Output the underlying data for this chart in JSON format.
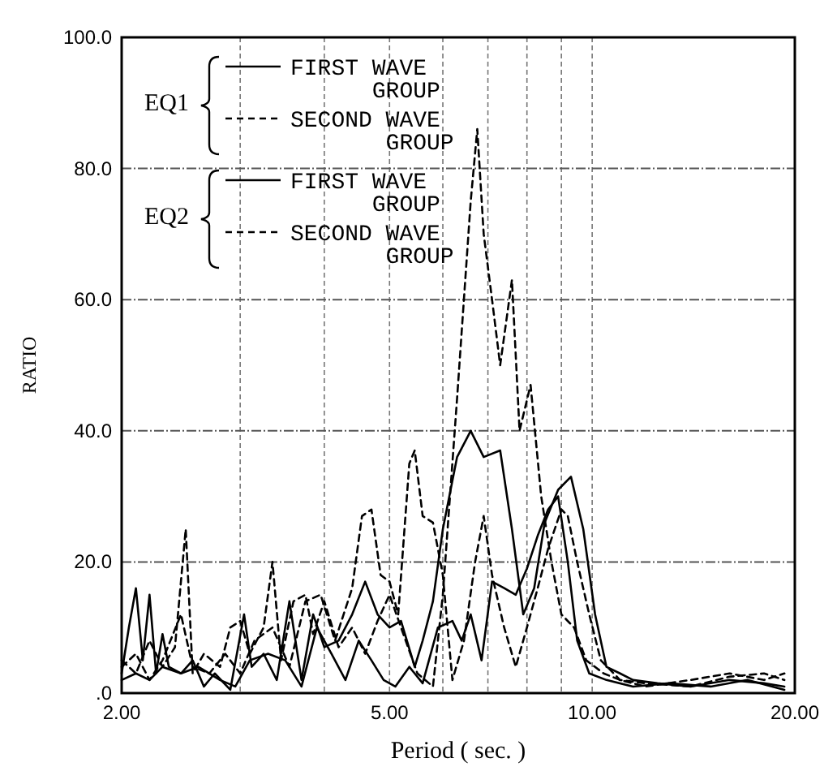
{
  "chart_data": {
    "type": "line",
    "xlabel": "Period ( sec. )",
    "ylabel": "RATIO",
    "log": "x",
    "xlim": [
      2,
      20
    ],
    "ylim": [
      0,
      100
    ],
    "xticks": [
      {
        "value": 2,
        "label": "2.00"
      },
      {
        "value": 3,
        "label": null
      },
      {
        "value": 4,
        "label": null
      },
      {
        "value": 5,
        "label": "5.00"
      },
      {
        "value": 6,
        "label": null
      },
      {
        "value": 7,
        "label": null
      },
      {
        "value": 8,
        "label": null
      },
      {
        "value": 9,
        "label": null
      },
      {
        "value": 10,
        "label": "10.00"
      },
      {
        "value": 20,
        "label": "20.00"
      }
    ],
    "yticks": [
      {
        "value": 0,
        "label": ".0"
      },
      {
        "value": 20,
        "label": "20.0"
      },
      {
        "value": 40,
        "label": "40.0"
      },
      {
        "value": 60,
        "label": "60.0"
      },
      {
        "value": 80,
        "label": "80.0"
      },
      {
        "value": 100,
        "label": "100.0"
      }
    ],
    "grid": true,
    "legend": "top left",
    "annotations": [
      "EQ1",
      "EQ2"
    ],
    "series": [
      {
        "name": "FIRST WAVE GROUP",
        "color": "#000000",
        "line_style": "solid",
        "x": [
          2.0,
          2.05,
          2.1,
          2.15,
          2.2,
          2.25,
          2.3,
          2.35,
          2.45,
          2.55,
          2.65,
          2.75,
          2.9,
          3.04,
          3.12,
          3.25,
          3.4,
          3.55,
          3.7,
          3.85,
          4.0,
          4.2,
          4.4,
          4.6,
          4.8,
          5.0,
          5.2,
          5.45,
          5.6,
          5.8,
          6.0,
          6.3,
          6.6,
          6.9,
          7.3,
          7.6,
          7.9,
          8.2,
          8.5,
          8.9,
          9.3,
          9.7,
          10.1,
          10.5,
          11.0,
          11.5,
          12.5,
          14,
          16,
          18,
          19.3
        ],
        "values": [
          3,
          10,
          16,
          5,
          15,
          3,
          9,
          4,
          3,
          5,
          1,
          3,
          0.5,
          12,
          4,
          6,
          2,
          14,
          2,
          12,
          7,
          8,
          12,
          17,
          12,
          10,
          11,
          4,
          8,
          14,
          25,
          36,
          40,
          36,
          37,
          25,
          12,
          16,
          26,
          31,
          33,
          25,
          12,
          4,
          3,
          2,
          1.5,
          1,
          2,
          1.5,
          1
        ]
      },
      {
        "name": "SECOND WAVE GROUP",
        "color": "#000000",
        "line_style": "dashed",
        "x": [
          2.0,
          2.1,
          2.2,
          2.3,
          2.4,
          2.49,
          2.55,
          2.65,
          2.8,
          2.9,
          3.0,
          3.1,
          3.25,
          3.35,
          3.45,
          3.6,
          3.75,
          3.85,
          4.0,
          4.2,
          4.4,
          4.6,
          4.8,
          5.0,
          5.2,
          5.5,
          5.8,
          6.0,
          6.3,
          6.6,
          6.75,
          6.9,
          7.1,
          7.3,
          7.6,
          7.8,
          8.1,
          8.4,
          8.7,
          9.0,
          9.4,
          9.8,
          10.4,
          11,
          12,
          14,
          16,
          18,
          19.3
        ],
        "values": [
          5,
          3,
          8,
          4,
          7,
          25,
          3,
          6,
          4,
          10,
          11,
          6,
          10,
          20,
          5,
          14,
          15,
          9,
          14,
          7,
          10,
          6,
          11,
          15,
          10,
          3,
          1,
          15,
          45,
          75,
          86,
          70,
          60,
          50,
          63,
          40,
          47,
          30,
          20,
          12,
          10,
          5,
          3,
          2,
          1,
          2,
          3,
          2,
          3
        ]
      },
      {
        "name": "FIRST WAVE GROUP",
        "color": "#000000",
        "line_style": "solid",
        "x": [
          2.0,
          2.1,
          2.2,
          2.3,
          2.45,
          2.6,
          2.8,
          2.95,
          3.1,
          3.3,
          3.5,
          3.7,
          3.9,
          4.1,
          4.3,
          4.5,
          4.7,
          4.9,
          5.1,
          5.35,
          5.6,
          5.9,
          6.2,
          6.4,
          6.6,
          6.85,
          7.1,
          7.4,
          7.7,
          8.0,
          8.3,
          8.6,
          8.9,
          9.2,
          9.5,
          9.9,
          10.5,
          11.5,
          13,
          15,
          17,
          19.3
        ],
        "values": [
          2,
          3,
          2,
          4,
          3,
          4,
          2,
          1,
          5,
          6,
          5,
          1,
          10,
          6,
          2,
          8,
          5,
          2,
          1,
          4,
          1.5,
          10,
          11,
          8,
          12,
          5,
          17,
          16,
          15,
          19,
          24,
          28,
          30,
          20,
          8,
          3,
          2,
          1,
          1.5,
          1,
          2,
          0.5
        ]
      },
      {
        "name": "SECOND WAVE GROUP",
        "color": "#000000",
        "line_style": "dashed",
        "x": [
          2.0,
          2.1,
          2.2,
          2.3,
          2.45,
          2.55,
          2.7,
          2.85,
          3.0,
          3.15,
          3.35,
          3.55,
          3.75,
          3.95,
          4.15,
          4.4,
          4.55,
          4.7,
          4.85,
          5.0,
          5.15,
          5.35,
          5.45,
          5.6,
          5.8,
          6.0,
          6.2,
          6.45,
          6.7,
          6.9,
          7.1,
          7.4,
          7.7,
          8.0,
          8.3,
          8.6,
          9.0,
          9.2,
          9.5,
          9.9,
          10.3,
          11,
          12,
          14,
          16,
          18,
          19.3
        ],
        "values": [
          4,
          6,
          2,
          5,
          12,
          4,
          3,
          6,
          3,
          8,
          10,
          4,
          14,
          15,
          8,
          16,
          27,
          28,
          18,
          17,
          12,
          35,
          37,
          27,
          26,
          18,
          2,
          8,
          20,
          27,
          18,
          10,
          4,
          10,
          16,
          22,
          28,
          27,
          20,
          12,
          5,
          2,
          1.5,
          1,
          2.5,
          3,
          2
        ]
      }
    ]
  }
}
